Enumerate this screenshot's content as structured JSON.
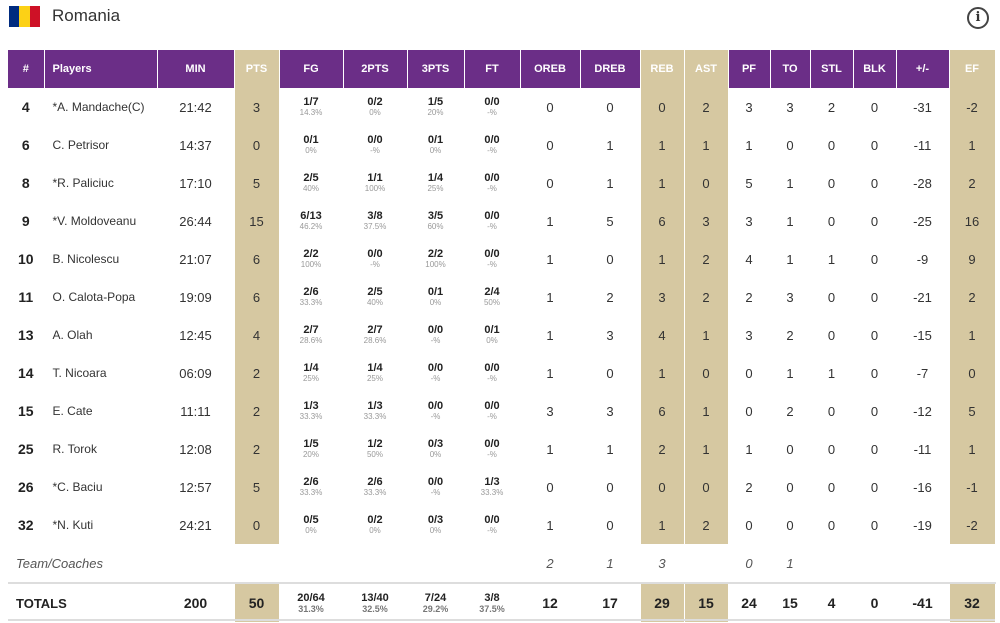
{
  "team": {
    "name": "Romania",
    "flag_colors": [
      "#002b7f",
      "#fcd116",
      "#ce1126"
    ],
    "info_icon": "info-icon"
  },
  "columns": {
    "num": "#",
    "players": "Players",
    "min": "MIN",
    "pts": "PTS",
    "fg": "FG",
    "p2": "2PTS",
    "p3": "3PTS",
    "ft": "FT",
    "oreb": "OREB",
    "dreb": "DREB",
    "reb": "REB",
    "ast": "AST",
    "pf": "PF",
    "to": "TO",
    "stl": "STL",
    "blk": "BLK",
    "pm": "+/-",
    "ef": "EF"
  },
  "colors": {
    "header": "#6b2e87",
    "highlight": "#d6c8a1"
  },
  "players": [
    {
      "num": "4",
      "name": "*A. Mandache(C)",
      "min": "21:42",
      "pts": "3",
      "fg": "1/7",
      "fg_pct": "14.3%",
      "p2": "0/2",
      "p2_pct": "0%",
      "p3": "1/5",
      "p3_pct": "20%",
      "ft": "0/0",
      "ft_pct": "-%",
      "oreb": "0",
      "dreb": "0",
      "reb": "0",
      "ast": "2",
      "pf": "3",
      "to": "3",
      "stl": "2",
      "blk": "0",
      "pm": "-31",
      "ef": "-2"
    },
    {
      "num": "6",
      "name": "C. Petrisor",
      "min": "14:37",
      "pts": "0",
      "fg": "0/1",
      "fg_pct": "0%",
      "p2": "0/0",
      "p2_pct": "-%",
      "p3": "0/1",
      "p3_pct": "0%",
      "ft": "0/0",
      "ft_pct": "-%",
      "oreb": "0",
      "dreb": "1",
      "reb": "1",
      "ast": "1",
      "pf": "1",
      "to": "0",
      "stl": "0",
      "blk": "0",
      "pm": "-11",
      "ef": "1"
    },
    {
      "num": "8",
      "name": "*R. Paliciuc",
      "min": "17:10",
      "pts": "5",
      "fg": "2/5",
      "fg_pct": "40%",
      "p2": "1/1",
      "p2_pct": "100%",
      "p3": "1/4",
      "p3_pct": "25%",
      "ft": "0/0",
      "ft_pct": "-%",
      "oreb": "0",
      "dreb": "1",
      "reb": "1",
      "ast": "0",
      "pf": "5",
      "to": "1",
      "stl": "0",
      "blk": "0",
      "pm": "-28",
      "ef": "2"
    },
    {
      "num": "9",
      "name": "*V. Moldoveanu",
      "min": "26:44",
      "pts": "15",
      "fg": "6/13",
      "fg_pct": "46.2%",
      "p2": "3/8",
      "p2_pct": "37.5%",
      "p3": "3/5",
      "p3_pct": "60%",
      "ft": "0/0",
      "ft_pct": "-%",
      "oreb": "1",
      "dreb": "5",
      "reb": "6",
      "ast": "3",
      "pf": "3",
      "to": "1",
      "stl": "0",
      "blk": "0",
      "pm": "-25",
      "ef": "16"
    },
    {
      "num": "10",
      "name": "B. Nicolescu",
      "min": "21:07",
      "pts": "6",
      "fg": "2/2",
      "fg_pct": "100%",
      "p2": "0/0",
      "p2_pct": "-%",
      "p3": "2/2",
      "p3_pct": "100%",
      "ft": "0/0",
      "ft_pct": "-%",
      "oreb": "1",
      "dreb": "0",
      "reb": "1",
      "ast": "2",
      "pf": "4",
      "to": "1",
      "stl": "1",
      "blk": "0",
      "pm": "-9",
      "ef": "9"
    },
    {
      "num": "11",
      "name": "O. Calota-Popa",
      "min": "19:09",
      "pts": "6",
      "fg": "2/6",
      "fg_pct": "33.3%",
      "p2": "2/5",
      "p2_pct": "40%",
      "p3": "0/1",
      "p3_pct": "0%",
      "ft": "2/4",
      "ft_pct": "50%",
      "oreb": "1",
      "dreb": "2",
      "reb": "3",
      "ast": "2",
      "pf": "2",
      "to": "3",
      "stl": "0",
      "blk": "0",
      "pm": "-21",
      "ef": "2"
    },
    {
      "num": "13",
      "name": "A. Olah",
      "min": "12:45",
      "pts": "4",
      "fg": "2/7",
      "fg_pct": "28.6%",
      "p2": "2/7",
      "p2_pct": "28.6%",
      "p3": "0/0",
      "p3_pct": "-%",
      "ft": "0/1",
      "ft_pct": "0%",
      "oreb": "1",
      "dreb": "3",
      "reb": "4",
      "ast": "1",
      "pf": "3",
      "to": "2",
      "stl": "0",
      "blk": "0",
      "pm": "-15",
      "ef": "1"
    },
    {
      "num": "14",
      "name": "T. Nicoara",
      "min": "06:09",
      "pts": "2",
      "fg": "1/4",
      "fg_pct": "25%",
      "p2": "1/4",
      "p2_pct": "25%",
      "p3": "0/0",
      "p3_pct": "-%",
      "ft": "0/0",
      "ft_pct": "-%",
      "oreb": "1",
      "dreb": "0",
      "reb": "1",
      "ast": "0",
      "pf": "0",
      "to": "1",
      "stl": "1",
      "blk": "0",
      "pm": "-7",
      "ef": "0"
    },
    {
      "num": "15",
      "name": "E. Cate",
      "min": "11:11",
      "pts": "2",
      "fg": "1/3",
      "fg_pct": "33.3%",
      "p2": "1/3",
      "p2_pct": "33.3%",
      "p3": "0/0",
      "p3_pct": "-%",
      "ft": "0/0",
      "ft_pct": "-%",
      "oreb": "3",
      "dreb": "3",
      "reb": "6",
      "ast": "1",
      "pf": "0",
      "to": "2",
      "stl": "0",
      "blk": "0",
      "pm": "-12",
      "ef": "5"
    },
    {
      "num": "25",
      "name": "R. Torok",
      "min": "12:08",
      "pts": "2",
      "fg": "1/5",
      "fg_pct": "20%",
      "p2": "1/2",
      "p2_pct": "50%",
      "p3": "0/3",
      "p3_pct": "0%",
      "ft": "0/0",
      "ft_pct": "-%",
      "oreb": "1",
      "dreb": "1",
      "reb": "2",
      "ast": "1",
      "pf": "1",
      "to": "0",
      "stl": "0",
      "blk": "0",
      "pm": "-11",
      "ef": "1"
    },
    {
      "num": "26",
      "name": "*C. Baciu",
      "min": "12:57",
      "pts": "5",
      "fg": "2/6",
      "fg_pct": "33.3%",
      "p2": "2/6",
      "p2_pct": "33.3%",
      "p3": "0/0",
      "p3_pct": "-%",
      "ft": "1/3",
      "ft_pct": "33.3%",
      "oreb": "0",
      "dreb": "0",
      "reb": "0",
      "ast": "0",
      "pf": "2",
      "to": "0",
      "stl": "0",
      "blk": "0",
      "pm": "-16",
      "ef": "-1"
    },
    {
      "num": "32",
      "name": "*N. Kuti",
      "min": "24:21",
      "pts": "0",
      "fg": "0/5",
      "fg_pct": "0%",
      "p2": "0/2",
      "p2_pct": "0%",
      "p3": "0/3",
      "p3_pct": "0%",
      "ft": "0/0",
      "ft_pct": "-%",
      "oreb": "1",
      "dreb": "0",
      "reb": "1",
      "ast": "2",
      "pf": "0",
      "to": "0",
      "stl": "0",
      "blk": "0",
      "pm": "-19",
      "ef": "-2"
    }
  ],
  "team_coaches": {
    "label": "Team/Coaches",
    "oreb": "2",
    "dreb": "1",
    "reb": "3",
    "pf": "0",
    "to": "1"
  },
  "totals": {
    "label": "TOTALS",
    "min": "200",
    "pts": "50",
    "fg": "20/64",
    "fg_pct": "31.3%",
    "p2": "13/40",
    "p2_pct": "32.5%",
    "p3": "7/24",
    "p3_pct": "29.2%",
    "ft": "3/8",
    "ft_pct": "37.5%",
    "oreb": "12",
    "dreb": "17",
    "reb": "29",
    "ast": "15",
    "pf": "24",
    "to": "15",
    "stl": "4",
    "blk": "0",
    "pm": "-41",
    "ef": "32"
  }
}
